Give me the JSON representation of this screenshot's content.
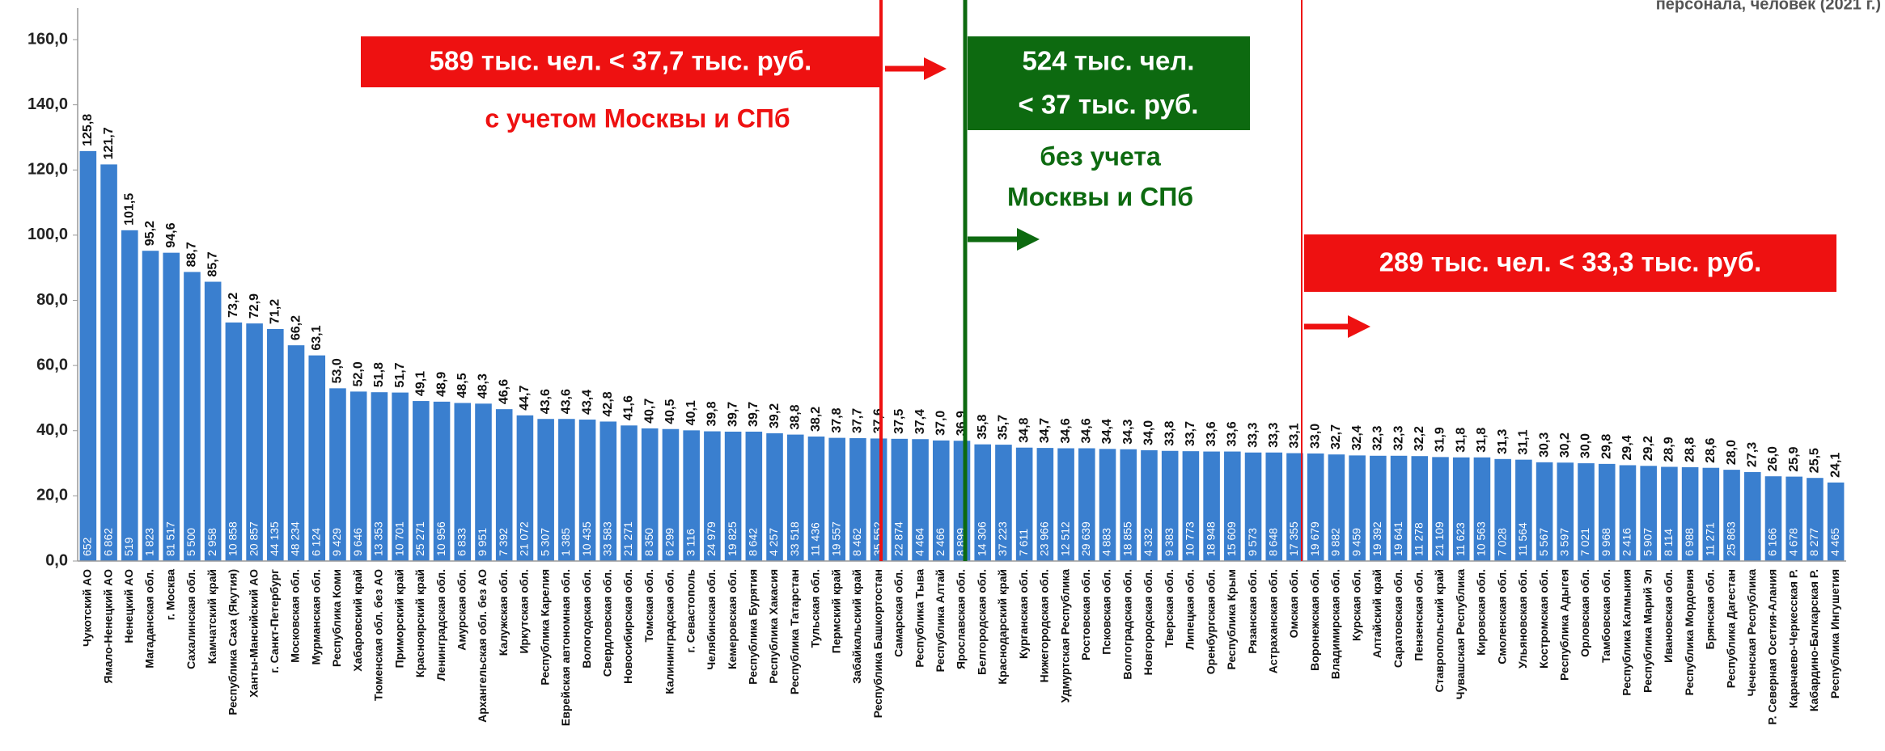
{
  "chart_data": {
    "type": "bar",
    "title": "персонала, человек (2021 г.)",
    "color": "#3a7fcf",
    "categories": [
      "Чукотский АО",
      "Ямало-Ненецкий АО",
      "Ненецкий АО",
      "Магаданская обл.",
      "г. Москва",
      "Сахалинская обл.",
      "Камчатский край",
      "Республика Саха (Якутия)",
      "Ханты-Мансийский АО",
      "г. Санкт-Петербург",
      "Московская обл.",
      "Мурманская обл.",
      "Республика Коми",
      "Хабаровский край",
      "Тюменская обл. без АО",
      "Приморский край",
      "Красноярский край",
      "Ленинградская обл.",
      "Амурская обл.",
      "Архангельская обл. без АО",
      "Калужская обл.",
      "Иркутская обл.",
      "Республика Карелия",
      "Еврейская автономная обл.",
      "Вологодская обл.",
      "Свердловская обл.",
      "Новосибирская обл.",
      "Томская обл.",
      "Калининградская обл.",
      "г. Севастополь",
      "Челябинская обл.",
      "Кемеровская обл.",
      "Республика Бурятия",
      "Республика Хакасия",
      "Республика Татарстан",
      "Тульская обл.",
      "Пермский край",
      "Забайкальский край",
      "Республика Башкортостан",
      "Самарская обл.",
      "Республика Тыва",
      "Республика Алтай",
      "Ярославская обл.",
      "Белгородская обл.",
      "Краснодарский край",
      "Курганская обл.",
      "Нижегородская обл.",
      "Удмуртская Республика",
      "Ростовская обл.",
      "Псковская обл.",
      "Волгоградская обл.",
      "Новгородская обл.",
      "Тверская обл.",
      "Липецкая обл.",
      "Оренбургская обл.",
      "Республика Крым",
      "Рязанская обл.",
      "Астраханская обл.",
      "Омская обл.",
      "Воронежская обл.",
      "Владимирская обл.",
      "Курская обл.",
      "Алтайский край",
      "Саратовская обл.",
      "Пензенская обл.",
      "Ставропольский край",
      "Чувашская Республика",
      "Кировская обл.",
      "Смоленская обл.",
      "Ульяновская обл.",
      "Костромская обл.",
      "Республика Адыгея",
      "Орловская обл.",
      "Тамбовская обл.",
      "Республика Калмыкия",
      "Республика Марий Эл",
      "Ивановская обл.",
      "Республика Мордовия",
      "Брянская обл.",
      "Республика Дагестан",
      "Чеченская Республика",
      "Р. Северная Осетия-Алания",
      "Карачаево-Черкесская Р.",
      "Кабардино-Балкарская Р.",
      "Республика Ингушетия"
    ],
    "values": [
      125.8,
      121.7,
      101.5,
      95.2,
      94.6,
      88.7,
      85.7,
      73.2,
      72.9,
      71.2,
      66.2,
      63.1,
      53.0,
      52.0,
      51.8,
      51.7,
      49.1,
      48.9,
      48.5,
      48.3,
      46.6,
      44.7,
      43.6,
      43.6,
      43.4,
      42.8,
      41.6,
      40.7,
      40.5,
      40.1,
      39.8,
      39.7,
      39.7,
      39.2,
      38.8,
      38.2,
      37.8,
      37.7,
      37.6,
      37.5,
      37.4,
      37.0,
      36.9,
      35.8,
      35.7,
      34.8,
      34.7,
      34.6,
      34.6,
      34.4,
      34.3,
      34.0,
      33.8,
      33.7,
      33.6,
      33.6,
      33.3,
      33.3,
      33.1,
      33.0,
      32.7,
      32.4,
      32.3,
      32.3,
      32.2,
      31.9,
      31.8,
      31.8,
      31.3,
      31.1,
      30.3,
      30.2,
      30.0,
      29.8,
      29.4,
      29.2,
      28.9,
      28.8,
      28.6,
      28.0,
      27.3,
      26.0,
      25.9,
      25.5,
      24.1
    ],
    "value_labels": [
      "125,8",
      "121,7",
      "101,5",
      "95,2",
      "94,6",
      "88,7",
      "85,7",
      "73,2",
      "72,9",
      "71,2",
      "66,2",
      "63,1",
      "53,0",
      "52,0",
      "51,8",
      "51,7",
      "49,1",
      "48,9",
      "48,5",
      "48,3",
      "46,6",
      "44,7",
      "43,6",
      "43,6",
      "43,4",
      "42,8",
      "41,6",
      "40,7",
      "40,5",
      "40,1",
      "39,8",
      "39,7",
      "39,7",
      "39,2",
      "38,8",
      "38,2",
      "37,8",
      "37,7",
      "37,6",
      "37,5",
      "37,4",
      "37,0",
      "36,9",
      "35,8",
      "35,7",
      "34,8",
      "34,7",
      "34,6",
      "34,6",
      "34,4",
      "34,3",
      "34,0",
      "33,8",
      "33,7",
      "33,6",
      "33,6",
      "33,3",
      "33,3",
      "33,1",
      "33,0",
      "32,7",
      "32,4",
      "32,3",
      "32,3",
      "32,2",
      "31,9",
      "31,8",
      "31,8",
      "31,3",
      "31,1",
      "30,3",
      "30,2",
      "30,0",
      "29,8",
      "29,4",
      "29,2",
      "28,9",
      "28,8",
      "28,6",
      "28,0",
      "27,3",
      "26,0",
      "25,9",
      "25,5",
      "24,1"
    ],
    "inner_labels": [
      "652",
      "6 862",
      "519",
      "1 823",
      "81 517",
      "5 500",
      "2 958",
      "10 858",
      "20 857",
      "44 135",
      "48 234",
      "6 124",
      "9 429",
      "9 646",
      "13 353",
      "10 701",
      "25 271",
      "10 956",
      "6 833",
      "9 951",
      "7 392",
      "21 072",
      "5 307",
      "1 385",
      "10 435",
      "33 583",
      "21 271",
      "8 350",
      "6 299",
      "3 116",
      "24 979",
      "19 825",
      "8 642",
      "4 257",
      "33 518",
      "11 436",
      "19 557",
      "8 462",
      "35 552",
      "22 874",
      "4 464",
      "2 466",
      "8 899",
      "14 306",
      "37 223",
      "7 611",
      "23 966",
      "12 512",
      "29 639",
      "4 883",
      "18 855",
      "4 332",
      "9 383",
      "10 773",
      "18 948",
      "15 609",
      "9 573",
      "8 648",
      "17 355",
      "19 679",
      "9 882",
      "9 459",
      "19 392",
      "19 641",
      "11 278",
      "21 109",
      "11 623",
      "10 563",
      "7 028",
      "11 564",
      "5 567",
      "3 597",
      "7 021",
      "9 968",
      "2 416",
      "5 907",
      "8 114",
      "6 988",
      "11 271",
      "25 863",
      null,
      "6 166",
      "4 678",
      "8 277",
      "4 465"
    ],
    "ylim": [
      0,
      160
    ],
    "yticks": [
      {
        "value": 0,
        "label": "0,0"
      },
      {
        "value": 20,
        "label": "20,0"
      },
      {
        "value": 40,
        "label": "40,0"
      },
      {
        "value": 60,
        "label": "60,0"
      },
      {
        "value": 80,
        "label": "80,0"
      },
      {
        "value": 100,
        "label": "100,0"
      },
      {
        "value": 120,
        "label": "120,0"
      },
      {
        "value": 140,
        "label": "140,0"
      },
      {
        "value": 160,
        "label": "160,0"
      }
    ],
    "annotations": {
      "box1": "589 тыс. чел. < 37,7 тыс. руб.",
      "note1": "с учетом Москвы и СПб",
      "box2_line1": "524 тыс. чел.",
      "box2_line2": "< 37 тыс. руб.",
      "note2_line1": "без учета",
      "note2_line2": "Москвы и СПб",
      "box3": "289 тыс. чел.  < 33,3 тыс. руб."
    }
  }
}
